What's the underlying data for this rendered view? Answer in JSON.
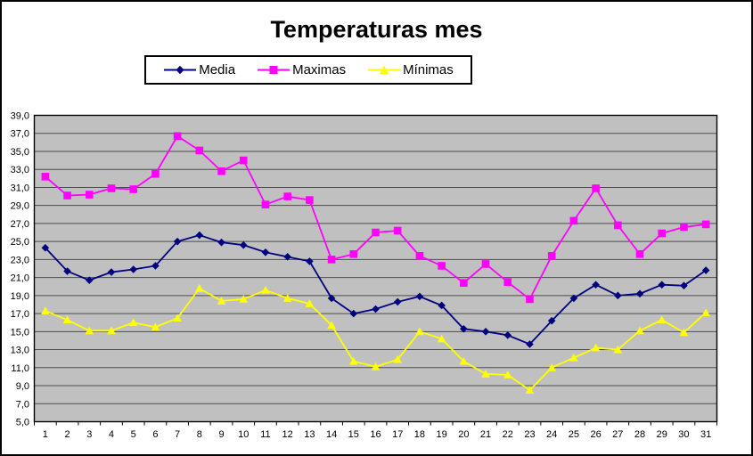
{
  "chart_data": {
    "type": "line",
    "title": "Temperaturas mes",
    "legend_position": "top",
    "plot_bg": "#C0C0C0",
    "grid_color": "#4D4D4D",
    "axis_color": "#000000",
    "categories": [
      1,
      2,
      3,
      4,
      5,
      6,
      7,
      8,
      9,
      10,
      11,
      12,
      13,
      14,
      15,
      16,
      17,
      18,
      19,
      20,
      21,
      22,
      23,
      24,
      25,
      26,
      27,
      28,
      29,
      30,
      31
    ],
    "x_axis": {
      "tick_labels": [
        "1",
        "2",
        "3",
        "4",
        "5",
        "6",
        "7",
        "8",
        "9",
        "10",
        "11",
        "12",
        "13",
        "14",
        "15",
        "16",
        "17",
        "18",
        "19",
        "20",
        "21",
        "22",
        "23",
        "24",
        "25",
        "26",
        "27",
        "28",
        "29",
        "30",
        "31"
      ]
    },
    "y_axis": {
      "min": 5,
      "max": 39,
      "step": 2,
      "tick_labels": [
        "39,0",
        "37,0",
        "35,0",
        "33,0",
        "31,0",
        "29,0",
        "27,0",
        "25,0",
        "23,0",
        "21,0",
        "19,0",
        "17,0",
        "15,0",
        "13,0",
        "11,0",
        "9,0",
        "7,0",
        "5,0"
      ]
    },
    "series": [
      {
        "name": "Media",
        "color": "#000080",
        "marker": "diamond",
        "values": [
          24.3,
          21.7,
          20.7,
          21.6,
          21.9,
          22.3,
          25.0,
          25.7,
          24.9,
          24.6,
          23.8,
          23.3,
          22.8,
          18.7,
          17.0,
          17.5,
          18.3,
          18.9,
          17.9,
          15.3,
          15.0,
          14.6,
          13.6,
          16.2,
          18.7,
          20.2,
          19.0,
          19.2,
          20.2,
          20.1,
          21.8
        ]
      },
      {
        "name": "Maximas",
        "color": "#FF00FF",
        "marker": "square",
        "values": [
          32.2,
          30.1,
          30.2,
          30.9,
          30.8,
          32.5,
          36.7,
          35.1,
          32.8,
          34.0,
          29.1,
          30.0,
          29.6,
          23.0,
          23.6,
          26.0,
          26.2,
          23.4,
          22.3,
          20.4,
          22.5,
          20.5,
          18.6,
          23.4,
          27.3,
          30.9,
          26.8,
          23.6,
          25.9,
          26.6,
          26.9
        ]
      },
      {
        "name": "Mínimas",
        "color": "#FFFF00",
        "marker": "triangle",
        "values": [
          17.3,
          16.3,
          15.1,
          15.1,
          16.0,
          15.5,
          16.5,
          19.8,
          18.4,
          18.6,
          19.6,
          18.7,
          18.1,
          15.7,
          11.7,
          11.1,
          11.9,
          15.0,
          14.2,
          11.7,
          10.3,
          10.2,
          8.5,
          11.0,
          12.1,
          13.2,
          13.0,
          15.1,
          16.3,
          14.9,
          17.1
        ]
      }
    ]
  }
}
